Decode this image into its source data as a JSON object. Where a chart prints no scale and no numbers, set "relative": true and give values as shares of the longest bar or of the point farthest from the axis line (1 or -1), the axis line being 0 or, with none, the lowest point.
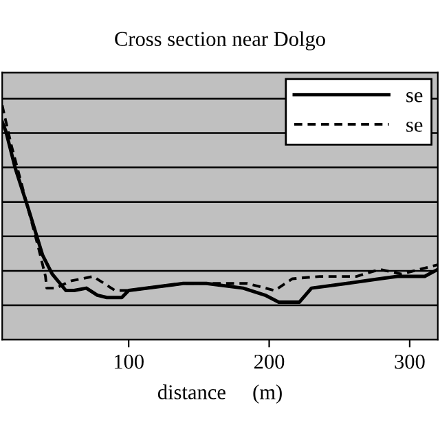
{
  "chart_data": {
    "type": "line",
    "title": "Cross section near Dolgo",
    "xlabel": "distance     (m)",
    "relative": true,
    "xlim": [
      10,
      320
    ],
    "xticks": [
      100,
      200,
      300
    ],
    "grid": "y",
    "legend": "top right",
    "tick_labels": "x",
    "series": [
      {
        "name": "se",
        "color": "#000000",
        "line_style": "solid",
        "x": [
          10,
          12.6,
          19.4,
          29.1,
          38.8,
          45.6,
          55.3,
          61.2,
          69.9,
          77.7,
          84.5,
          95.1,
          100,
          138.8,
          155.3,
          181.5,
          197.1,
          206.8,
          221.4,
          230.1,
          255.3,
          278.6,
          291.3,
          310.7,
          320
        ],
        "values": [
          0.93,
          0.89,
          0.73,
          0.55,
          0.36,
          0.28,
          0.21,
          0.21,
          0.22,
          0.19,
          0.18,
          0.18,
          0.21,
          0.24,
          0.24,
          0.22,
          0.19,
          0.16,
          0.16,
          0.22,
          0.24,
          0.26,
          0.27,
          0.27,
          0.3
        ]
      },
      {
        "name": "se",
        "color": "#000000",
        "line_style": "dashed",
        "x": [
          10,
          16.5,
          26.2,
          35.9,
          40.8,
          41.7,
          48.5,
          58.2,
          74.7,
          82.5,
          90.3,
          100,
          138.8,
          184.5,
          203.9,
          216.5,
          235.9,
          262.1,
          278.6,
          294.2,
          320
        ],
        "values": [
          1.0,
          0.83,
          0.61,
          0.39,
          0.27,
          0.22,
          0.22,
          0.25,
          0.27,
          0.24,
          0.21,
          0.21,
          0.24,
          0.24,
          0.21,
          0.26,
          0.27,
          0.27,
          0.3,
          0.28,
          0.32
        ]
      }
    ]
  }
}
